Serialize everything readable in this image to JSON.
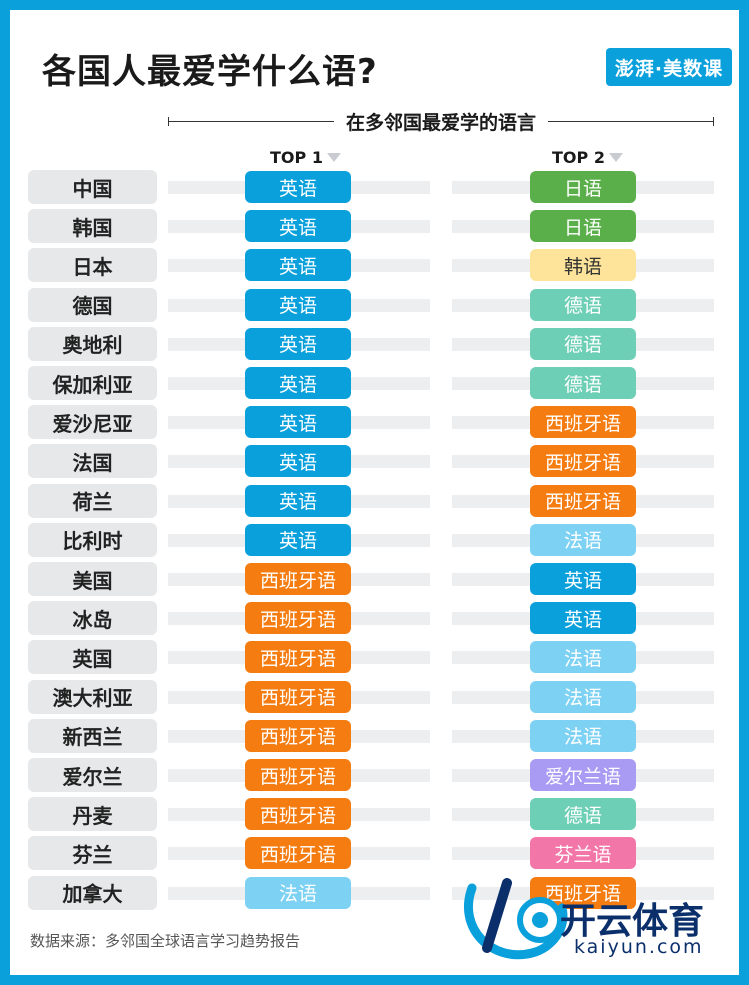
{
  "title": "各国人最爱学什么语?",
  "brand": "澎湃·美数课",
  "subtitle": "在多邻国最爱学的语言",
  "chart_data": {
    "type": "table",
    "columns": [
      "TOP 1",
      "TOP 2"
    ],
    "rows": [
      {
        "country": "中国",
        "top1": "英语",
        "top2": "日语"
      },
      {
        "country": "韩国",
        "top1": "英语",
        "top2": "日语"
      },
      {
        "country": "日本",
        "top1": "英语",
        "top2": "韩语"
      },
      {
        "country": "德国",
        "top1": "英语",
        "top2": "德语"
      },
      {
        "country": "奥地利",
        "top1": "英语",
        "top2": "德语"
      },
      {
        "country": "保加利亚",
        "top1": "英语",
        "top2": "德语"
      },
      {
        "country": "爱沙尼亚",
        "top1": "英语",
        "top2": "西班牙语"
      },
      {
        "country": "法国",
        "top1": "英语",
        "top2": "西班牙语"
      },
      {
        "country": "荷兰",
        "top1": "英语",
        "top2": "西班牙语"
      },
      {
        "country": "比利时",
        "top1": "英语",
        "top2": "法语"
      },
      {
        "country": "美国",
        "top1": "西班牙语",
        "top2": "英语"
      },
      {
        "country": "冰岛",
        "top1": "西班牙语",
        "top2": "英语"
      },
      {
        "country": "英国",
        "top1": "西班牙语",
        "top2": "法语"
      },
      {
        "country": "澳大利亚",
        "top1": "西班牙语",
        "top2": "法语"
      },
      {
        "country": "新西兰",
        "top1": "西班牙语",
        "top2": "法语"
      },
      {
        "country": "爱尔兰",
        "top1": "西班牙语",
        "top2": "爱尔兰语"
      },
      {
        "country": "丹麦",
        "top1": "西班牙语",
        "top2": "德语"
      },
      {
        "country": "芬兰",
        "top1": "西班牙语",
        "top2": "芬兰语"
      },
      {
        "country": "加拿大",
        "top1": "法语",
        "top2": "西班牙语"
      }
    ],
    "language_colors": {
      "英语": "#0aa0dc",
      "西班牙语": "#f57c10",
      "日语": "#5aaf4a",
      "韩语": "#fde49a",
      "德语": "#6dcfb5",
      "法语": "#7dd2f4",
      "爱尔兰语": "#a99af3",
      "芬兰语": "#f277a8"
    }
  },
  "source": "数据来源：多邻国全球语言学习趋势报告",
  "watermark": {
    "name": "开云体育",
    "url": "kaiyun.com"
  }
}
